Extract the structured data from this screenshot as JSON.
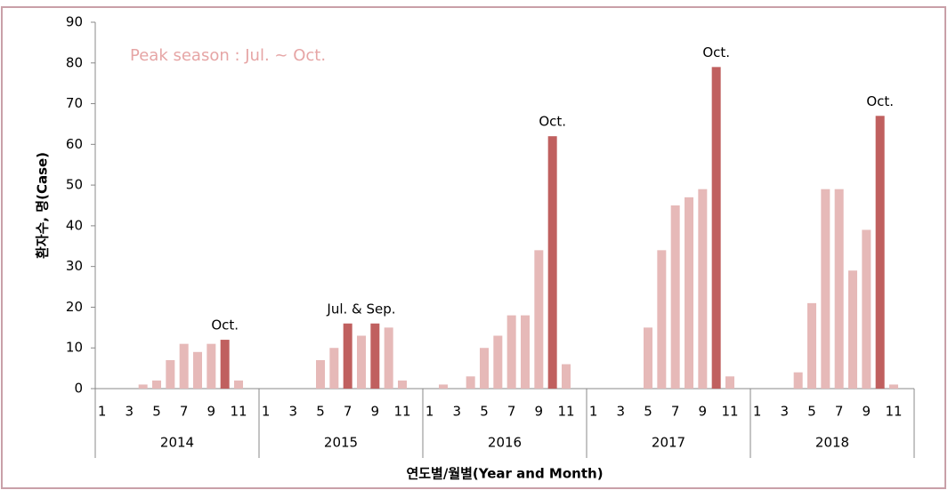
{
  "chart_data": {
    "type": "bar",
    "ylabel": "환자수, 명(Case)",
    "xlabel": "연도별/월별(Year and Month)",
    "annotation": "Peak season : Jul. ~ Oct.",
    "categories": [
      "1",
      null,
      "3",
      null,
      "5",
      null,
      "7",
      null,
      "9",
      null,
      "11",
      null,
      "1",
      null,
      "3",
      null,
      "5",
      null,
      "7",
      null,
      "9",
      null,
      "11",
      null,
      "1",
      null,
      "3",
      null,
      "5",
      null,
      "7",
      null,
      "9",
      null,
      "11",
      null,
      "1",
      null,
      "3",
      null,
      "5",
      null,
      "7",
      null,
      "9",
      null,
      "11",
      null,
      "1",
      null,
      "3",
      null,
      "5",
      null,
      "7",
      null,
      "9",
      null,
      "11",
      null
    ],
    "groups": [
      "2014",
      "2015",
      "2016",
      "2017",
      "2018"
    ],
    "values": [
      0,
      0,
      0,
      1,
      2,
      7,
      11,
      9,
      11,
      12,
      2,
      0,
      0,
      0,
      0,
      0,
      7,
      10,
      16,
      13,
      16,
      15,
      2,
      0,
      0,
      1,
      0,
      3,
      10,
      13,
      18,
      18,
      34,
      62,
      6,
      0,
      0,
      0,
      0,
      0,
      15,
      34,
      45,
      47,
      49,
      79,
      3,
      0,
      0,
      0,
      0,
      4,
      21,
      49,
      49,
      29,
      39,
      67,
      1,
      0
    ],
    "colors": [
      "#e6b9b8",
      "#e6b9b8",
      "#e6b9b8",
      "#e6b9b8",
      "#e6b9b8",
      "#e6b9b8",
      "#e6b9b8",
      "#e6b9b8",
      "#e6b9b8",
      "#c0605f",
      "#e6b9b8",
      "#e6b9b8",
      "#e6b9b8",
      "#e6b9b8",
      "#e6b9b8",
      "#e6b9b8",
      "#e6b9b8",
      "#e6b9b8",
      "#c0605f",
      "#e6b9b8",
      "#c0605f",
      "#e6b9b8",
      "#e6b9b8",
      "#e6b9b8",
      "#e6b9b8",
      "#e6b9b8",
      "#e6b9b8",
      "#e6b9b8",
      "#e6b9b8",
      "#e6b9b8",
      "#e6b9b8",
      "#e6b9b8",
      "#e6b9b8",
      "#c0605f",
      "#e6b9b8",
      "#e6b9b8",
      "#e6b9b8",
      "#e6b9b8",
      "#e6b9b8",
      "#e6b9b8",
      "#e6b9b8",
      "#e6b9b8",
      "#e6b9b8",
      "#e6b9b8",
      "#e6b9b8",
      "#c0605f",
      "#e6b9b8",
      "#e6b9b8",
      "#e6b9b8",
      "#e6b9b8",
      "#e6b9b8",
      "#e6b9b8",
      "#e6b9b8",
      "#e6b9b8",
      "#e6b9b8",
      "#e6b9b8",
      "#e6b9b8",
      "#c0605f",
      "#e6b9b8",
      "#e6b9b8"
    ],
    "bar_labels": [
      {
        "text": "Oct.",
        "indices": [
          9
        ]
      },
      {
        "text": "Jul. & Sep.",
        "indices": [
          18,
          20
        ]
      },
      {
        "text": "Oct.",
        "indices": [
          33
        ]
      },
      {
        "text": "Oct.",
        "indices": [
          45
        ]
      },
      {
        "text": "Oct.",
        "indices": [
          57
        ]
      }
    ],
    "ylim": [
      0,
      90
    ],
    "yticks": [
      0,
      10,
      20,
      30,
      40,
      50,
      60,
      70,
      80,
      90
    ]
  }
}
